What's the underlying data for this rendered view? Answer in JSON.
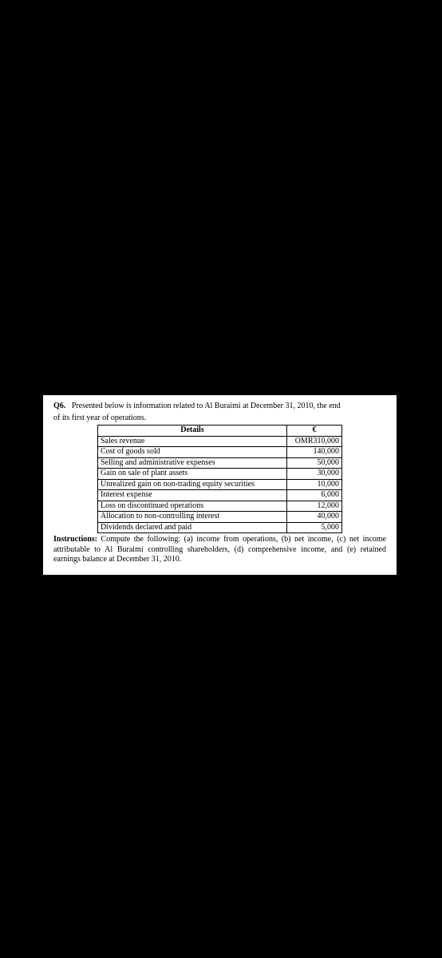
{
  "question": {
    "label": "Q6.",
    "text_part1": "Presented below is information related to Al Buraimi at December 31, 2010, the end",
    "text_part2": "of its first year of operations."
  },
  "table": {
    "headers": {
      "details": "Details",
      "amount": "€"
    },
    "rows": [
      {
        "label": "Sales revenue",
        "value": "OMR310,000"
      },
      {
        "label": "Cost of goods sold",
        "value": "140,000"
      },
      {
        "label": "Selling and administrative expenses",
        "value": "50,000"
      },
      {
        "label": "Gain on sale of plant assets",
        "value": "30,000"
      },
      {
        "label": "Unrealized gain on non-trading equity securities",
        "value": "10,000"
      },
      {
        "label": "Interest expense",
        "value": "6,000"
      },
      {
        "label": "Loss on discontinued operations",
        "value": "12,000"
      },
      {
        "label": "Allocation to non-controlling interest",
        "value": "40,000"
      },
      {
        "label": "Dividends declared and paid",
        "value": "5,000"
      }
    ]
  },
  "instructions": {
    "label": "Instructions:",
    "text": "Compute the following: (a) income from operations, (b) net income, (c) net income attributable to Al Buraimi controlling shareholders, (d) comprehensive income, and (e) retained earnings balance at December 31, 2010."
  }
}
